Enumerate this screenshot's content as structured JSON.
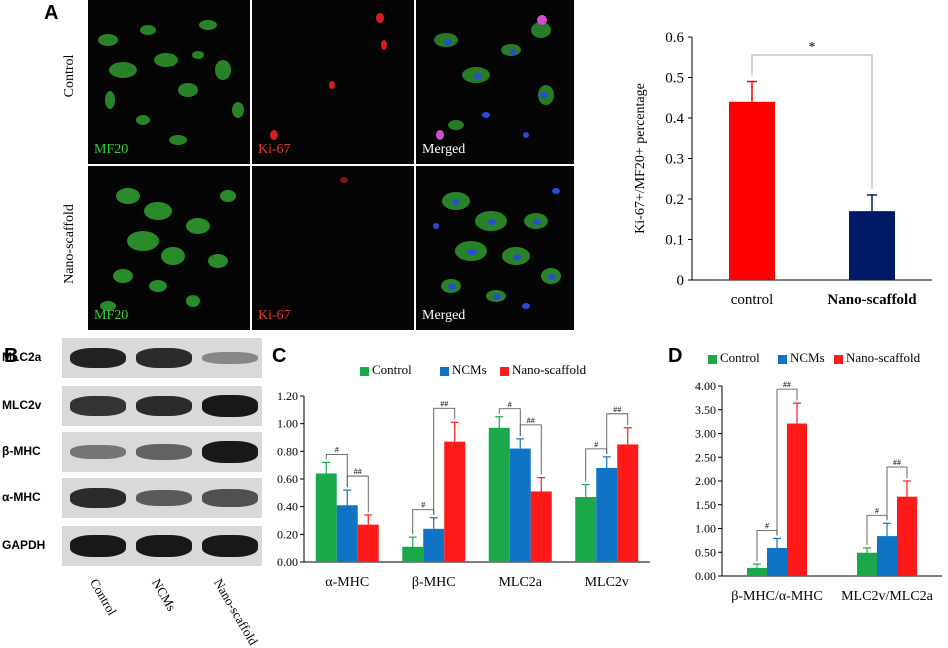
{
  "panel_letters": {
    "a": "A",
    "b": "B",
    "c": "C",
    "d": "D"
  },
  "micrographs": {
    "row_labels": [
      "Control",
      "Nano-scaffold"
    ],
    "channel_labels": [
      "MF20",
      "Ki-67",
      "Merged"
    ],
    "label_colors": [
      "#35d235",
      "#e53935",
      "#ffffff"
    ]
  },
  "western_blot": {
    "rows": [
      "MLC2a",
      "MLC2v",
      "β-MHC",
      "α-MHC",
      "GAPDH"
    ],
    "lanes": [
      "Control",
      "NCMs",
      "Nano-scaffold"
    ],
    "band_intensity": [
      [
        0.9,
        0.85,
        0.35
      ],
      [
        0.8,
        0.85,
        0.95
      ],
      [
        0.45,
        0.55,
        0.95
      ],
      [
        0.85,
        0.6,
        0.65
      ],
      [
        0.95,
        0.95,
        0.95
      ]
    ]
  },
  "chart_data": [
    {
      "id": "A",
      "type": "bar",
      "title": "",
      "xlabel": "",
      "ylabel": "Ki-67+/MF20+ percentage",
      "categories": [
        "control",
        "Nano-scaffold"
      ],
      "values": [
        0.44,
        0.17
      ],
      "errors": [
        0.05,
        0.04
      ],
      "colors": [
        "#ff0000",
        "#001a66"
      ],
      "ylim": [
        0,
        0.6
      ],
      "yticks": [
        "0",
        "0.1",
        "0.2",
        "0.3",
        "0.4",
        "0.5",
        "0.6"
      ],
      "annotation": "*",
      "grid": false
    },
    {
      "id": "C",
      "type": "bar",
      "title": "",
      "xlabel": "",
      "ylabel": "",
      "categories": [
        "α-MHC",
        "β-MHC",
        "MLC2a",
        "MLC2v"
      ],
      "series": [
        {
          "name": "Control",
          "values": [
            0.64,
            0.11,
            0.97,
            0.47
          ],
          "errors": [
            0.08,
            0.07,
            0.08,
            0.09
          ],
          "color": "#1aa84a"
        },
        {
          "name": "NCMs",
          "values": [
            0.41,
            0.24,
            0.82,
            0.68
          ],
          "errors": [
            0.11,
            0.08,
            0.07,
            0.08
          ],
          "color": "#0f74c6"
        },
        {
          "name": "Nano-scaffold",
          "values": [
            0.27,
            0.87,
            0.51,
            0.85
          ],
          "errors": [
            0.07,
            0.14,
            0.1,
            0.12
          ],
          "color": "#ff1a1a"
        }
      ],
      "ylim": [
        0,
        1.2
      ],
      "yticks": [
        "0.00",
        "0.20",
        "0.40",
        "0.60",
        "0.80",
        "1.00",
        "1.20"
      ],
      "annotations": [
        "#",
        "##"
      ],
      "legend": "top",
      "grid": false
    },
    {
      "id": "D",
      "type": "bar",
      "title": "",
      "xlabel": "",
      "ylabel": "",
      "categories": [
        "β-MHC/α-MHC",
        "MLC2v/MLC2a"
      ],
      "series": [
        {
          "name": "Control",
          "values": [
            0.17,
            0.49
          ],
          "errors": [
            0.08,
            0.1
          ],
          "color": "#1aa84a"
        },
        {
          "name": "NCMs",
          "values": [
            0.59,
            0.84
          ],
          "errors": [
            0.2,
            0.27
          ],
          "color": "#0f74c6"
        },
        {
          "name": "Nano-scaffold",
          "values": [
            3.21,
            1.67
          ],
          "errors": [
            0.43,
            0.33
          ],
          "color": "#ff1a1a"
        }
      ],
      "ylim": [
        0,
        4.0
      ],
      "yticks": [
        "0.00",
        "0.50",
        "1.00",
        "1.50",
        "2.00",
        "2.50",
        "3.00",
        "3.50",
        "4.00"
      ],
      "annotations": [
        "#",
        "##"
      ],
      "legend": "top",
      "grid": false
    }
  ]
}
